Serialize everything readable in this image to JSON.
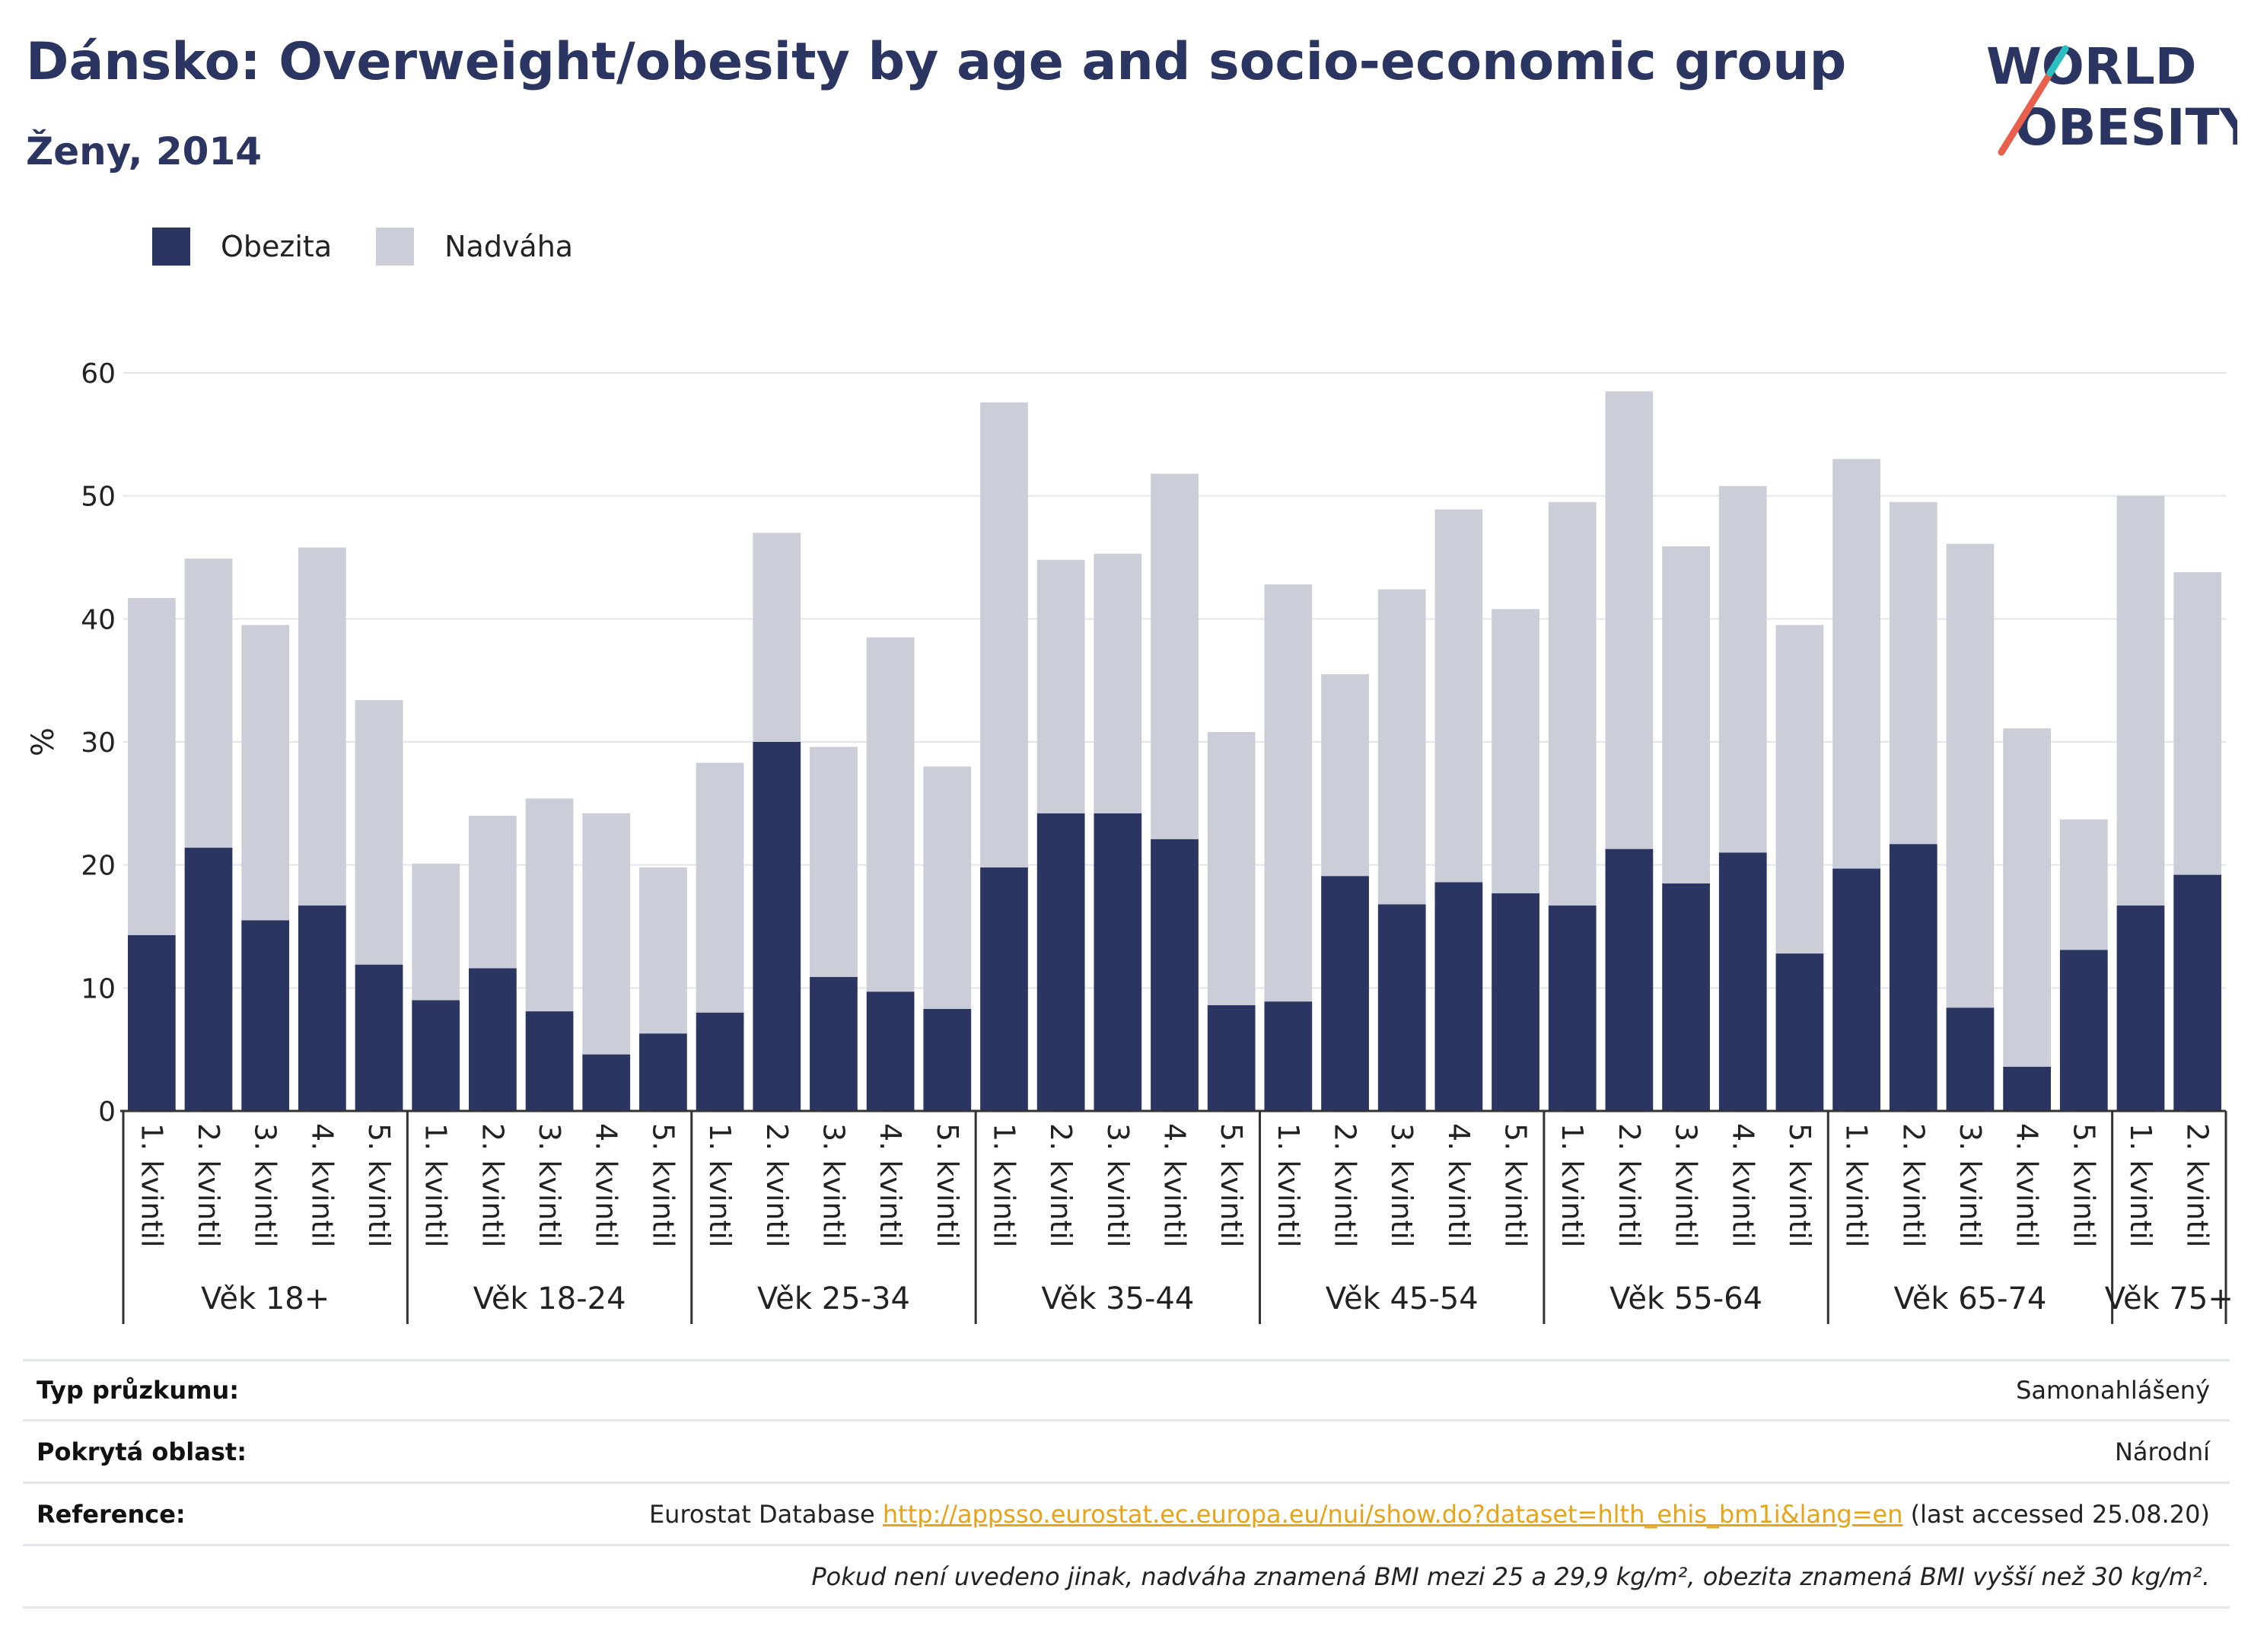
{
  "header": {
    "title": "Dánsko: Overweight/obesity by age and socio-economic group",
    "subtitle": "Ženy, 2014"
  },
  "logo": {
    "line1": "WORLD",
    "line2": "OBESITY",
    "accent_colors": [
      "#e8604c",
      "#2bbfc0"
    ]
  },
  "legend": [
    {
      "label": "Obezita",
      "color": "#2b3561"
    },
    {
      "label": "Nadváha",
      "color": "#cbcdd9"
    }
  ],
  "chart_data": {
    "type": "bar",
    "stacked": true,
    "ylabel": "%",
    "xlabel": "",
    "ylim": [
      0,
      60
    ],
    "yticks": [
      0,
      10,
      20,
      30,
      40,
      50,
      60
    ],
    "grid": true,
    "legend_position": "top-left",
    "groups": [
      {
        "label": "Věk 18+",
        "categories": [
          "1. kvintil",
          "2. kvintil",
          "3. kvintil",
          "4. kvintil",
          "5. kvintil"
        ]
      },
      {
        "label": "Věk 18-24",
        "categories": [
          "1. kvintil",
          "2. kvintil",
          "3. kvintil",
          "4. kvintil",
          "5. kvintil"
        ]
      },
      {
        "label": "Věk 25-34",
        "categories": [
          "1. kvintil",
          "2. kvintil",
          "3. kvintil",
          "4. kvintil",
          "5. kvintil"
        ]
      },
      {
        "label": "Věk 35-44",
        "categories": [
          "1. kvintil",
          "2. kvintil",
          "3. kvintil",
          "4. kvintil",
          "5. kvintil"
        ]
      },
      {
        "label": "Věk 45-54",
        "categories": [
          "1. kvintil",
          "2. kvintil",
          "3. kvintil",
          "4. kvintil",
          "5. kvintil"
        ]
      },
      {
        "label": "Věk 55-64",
        "categories": [
          "1. kvintil",
          "2. kvintil",
          "3. kvintil",
          "4. kvintil",
          "5. kvintil"
        ]
      },
      {
        "label": "Věk 65-74",
        "categories": [
          "1. kvintil",
          "2. kvintil",
          "3. kvintil",
          "4. kvintil",
          "5. kvintil"
        ]
      },
      {
        "label": "Věk 75+",
        "categories": [
          "1. kvintil",
          "2. kvintil"
        ]
      }
    ],
    "series": [
      {
        "name": "Obezita",
        "color": "#2b3561",
        "values": [
          14.3,
          21.4,
          15.5,
          16.7,
          11.9,
          9.0,
          11.6,
          8.1,
          4.6,
          6.3,
          8.0,
          30.0,
          10.9,
          9.7,
          8.3,
          19.8,
          24.2,
          24.2,
          22.1,
          8.6,
          8.9,
          19.1,
          16.8,
          18.6,
          17.7,
          16.7,
          21.3,
          18.5,
          21.0,
          12.8,
          19.7,
          21.7,
          8.4,
          3.6,
          13.1,
          16.7,
          19.2
        ]
      },
      {
        "name": "Nadváha",
        "color": "#cbcdd9",
        "values": [
          27.4,
          23.5,
          24.0,
          29.1,
          21.5,
          11.1,
          12.4,
          17.3,
          19.6,
          13.5,
          20.3,
          17.0,
          18.7,
          28.8,
          19.7,
          37.8,
          20.6,
          21.1,
          29.7,
          22.2,
          33.9,
          16.4,
          25.6,
          30.3,
          23.1,
          32.8,
          37.2,
          27.4,
          29.8,
          26.7,
          33.3,
          27.8,
          37.7,
          27.5,
          10.6,
          33.3,
          24.6
        ]
      }
    ]
  },
  "info": {
    "survey_type_label": "Typ průzkumu:",
    "survey_type_value": "Samonahlášený",
    "coverage_label": "Pokrytá oblast:",
    "coverage_value": "Národní",
    "reference_label": "Reference:",
    "reference_prefix": "Eurostat Database ",
    "reference_url": "http://appsso.eurostat.ec.europa.eu/nui/show.do?dataset=hlth_ehis_bm1i&lang=en",
    "reference_suffix": " (last accessed 25.08.20)",
    "note": "Pokud není uvedeno jinak, nadváha znamená BMI mezi 25 a 29,9 kg/m², obezita znamená BMI vyšší než 30 kg/m²."
  }
}
